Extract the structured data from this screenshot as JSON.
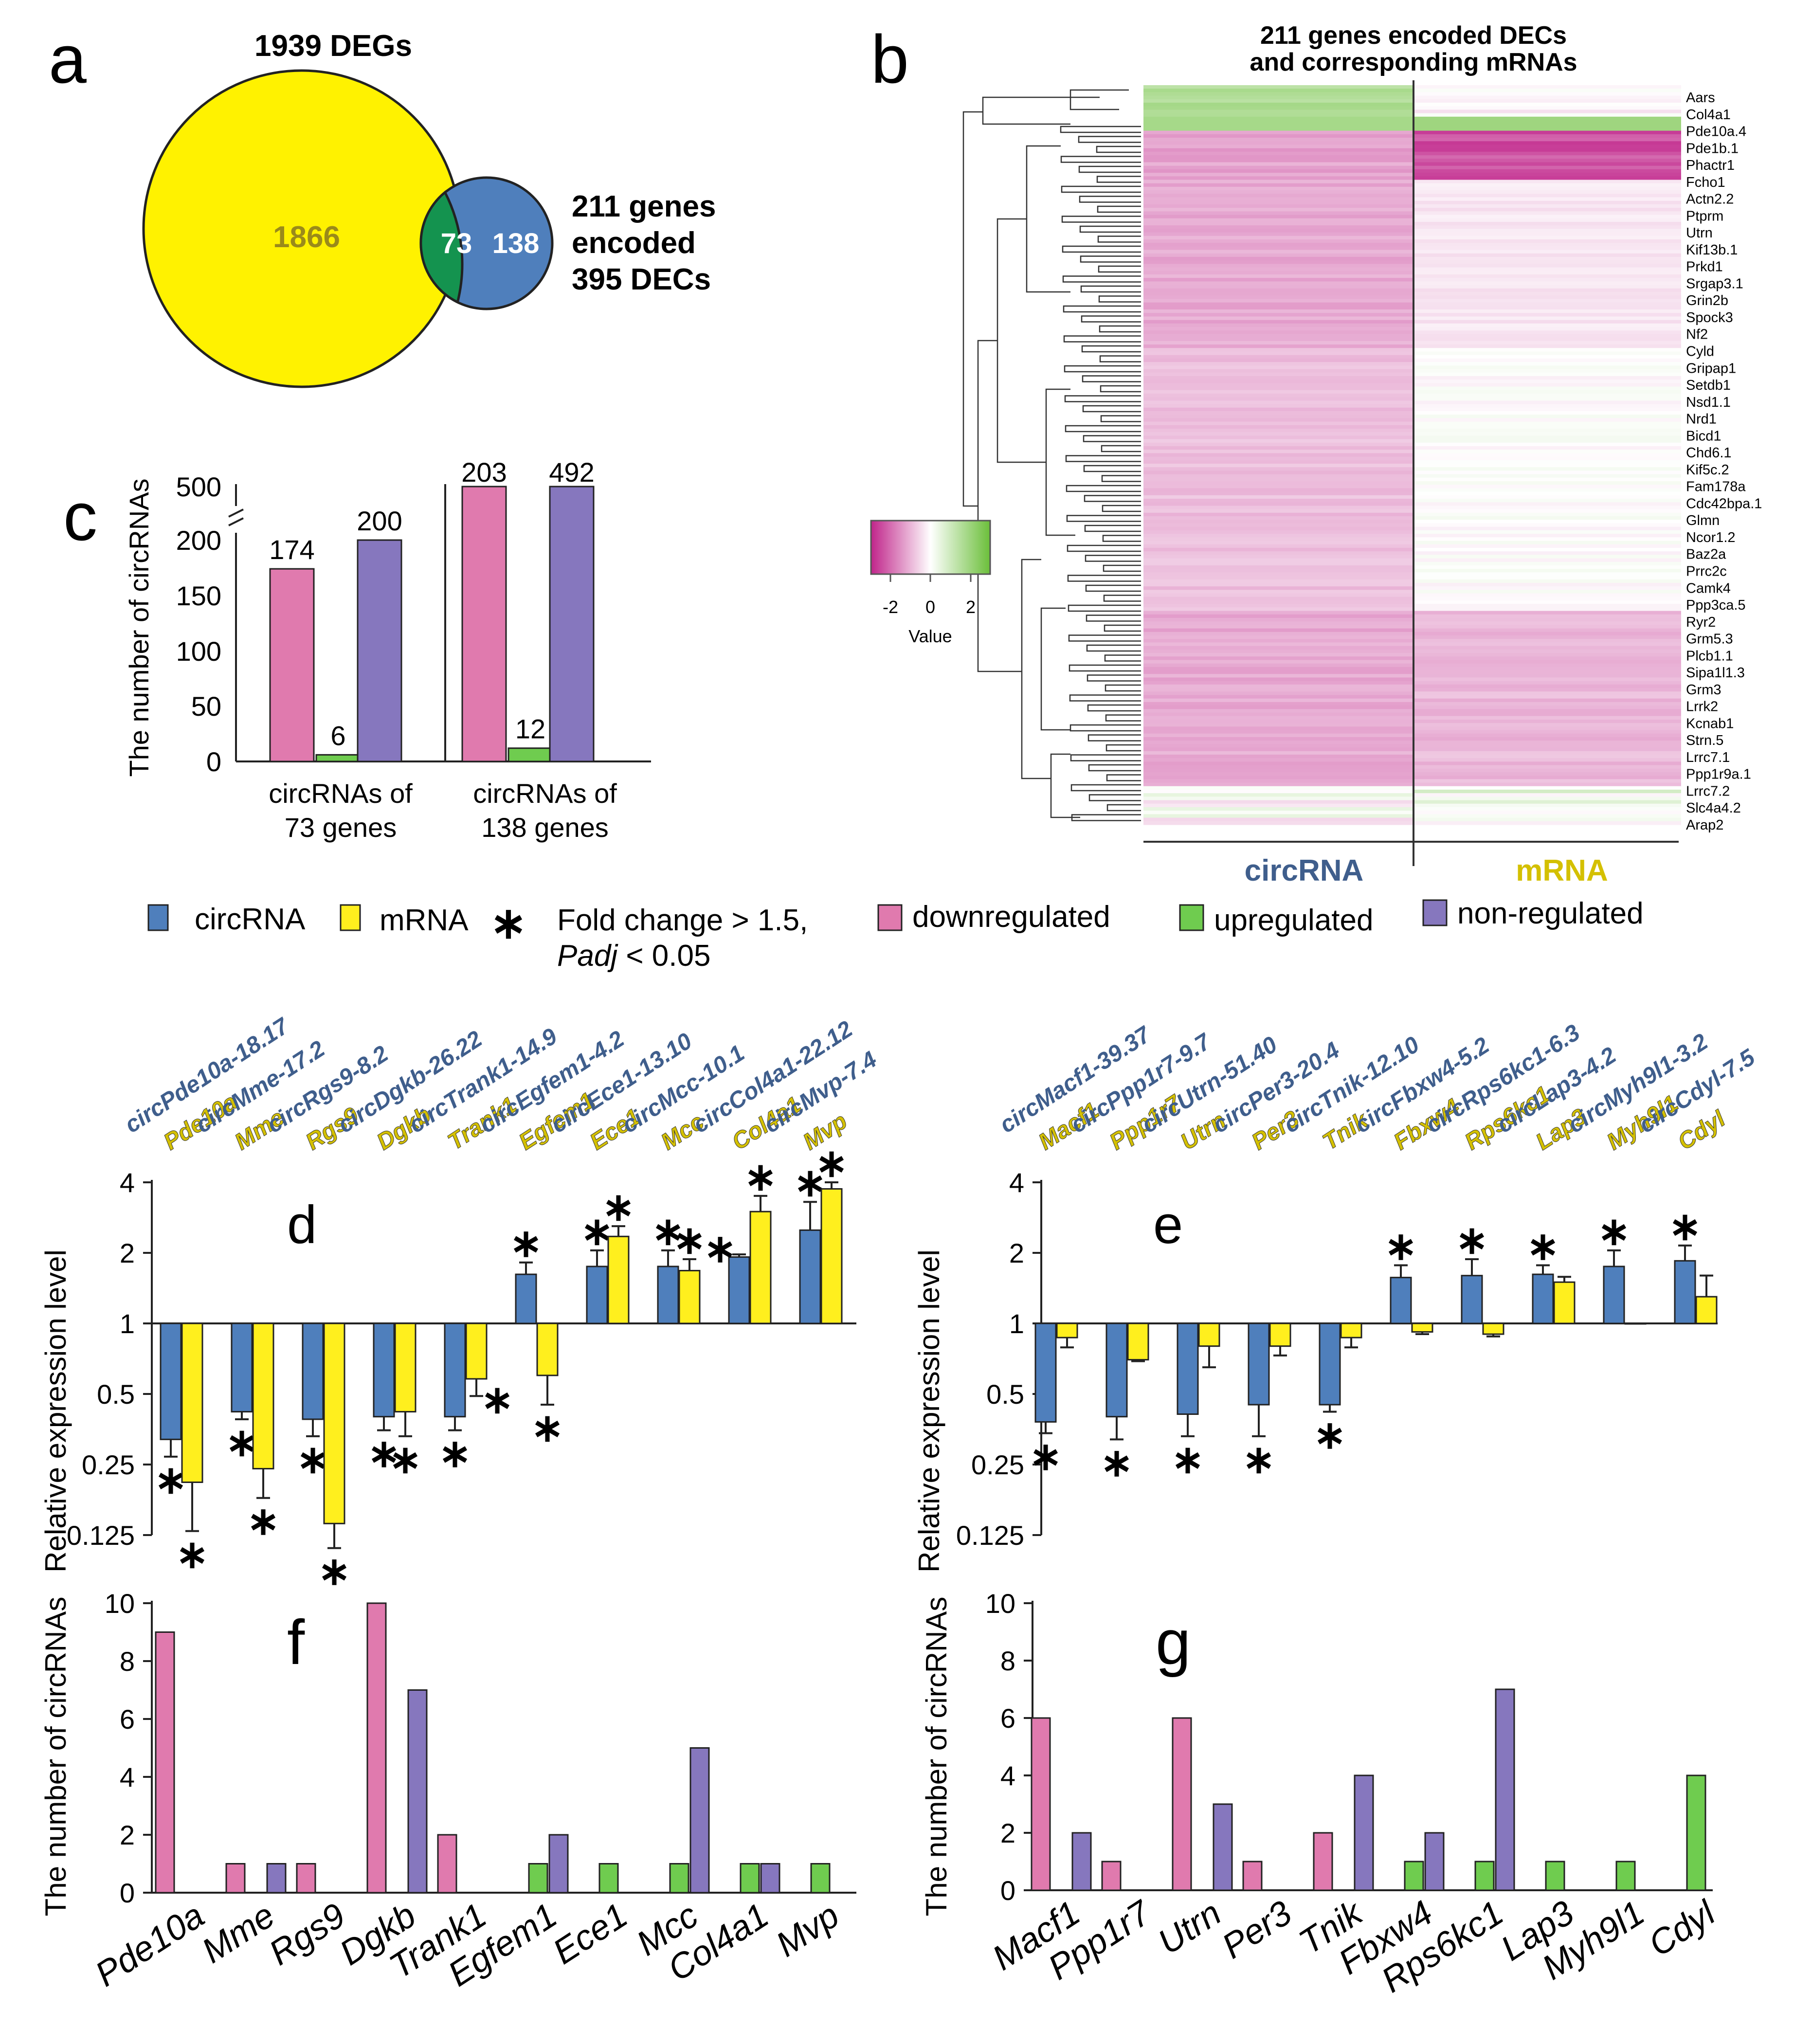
{
  "colors": {
    "circ": "#4f7fbc",
    "mrna": "#ffef1e",
    "down": "#e07aae",
    "up": "#6fcc4f",
    "non": "#8677be",
    "yellow_venn": "#fff200",
    "green_venn": "#14934f",
    "blue_venn": "#4f7fbc",
    "circ_text": "#3f5e8c",
    "mrna_text": "#d4c000"
  },
  "venn": {
    "panel": "a",
    "top_label": "1939 DEGs",
    "left_only": "1866",
    "overlap": "73",
    "right_only": "138",
    "right_label": [
      "211 genes",
      "encoded",
      "395 DECs"
    ]
  },
  "heatmap": {
    "panel": "b",
    "title_line1": "211 genes encoded DECs",
    "title_line2": "and corresponding mRNAs",
    "gene_labels": [
      "Aars",
      "Col4a1",
      "Pde10a.4",
      "Pde1b.1",
      "Phactr1",
      "Fcho1",
      "Actn2.2",
      "Ptprm",
      "Utrn",
      "Kif13b.1",
      "Prkd1",
      "Srgap3.1",
      "Grin2b",
      "Spock3",
      "Nf2",
      "Cyld",
      "Gripap1",
      "Setdb1",
      "Nsd1.1",
      "Nrd1",
      "Bicd1",
      "Chd6.1",
      "Kif5c.2",
      "Fam178a",
      "Cdc42bpa.1",
      "Glmn",
      "Ncor1.2",
      "Baz2a",
      "Prrc2c",
      "Camk4",
      "Ppp3ca.5",
      "Ryr2",
      "Grm5.3",
      "Plcb1.1",
      "Sipa1l1.3",
      "Grm3",
      "Lrrk2",
      "Kcnab1",
      "Strn.5",
      "Lrrc7.1",
      "Ppp1r9a.1",
      "Lrrc7.2",
      "Slc4a4.2",
      "Arap2"
    ],
    "column_labels": [
      "circRNA",
      "mRNA"
    ],
    "legend_title": "Value",
    "legend_ticks": [
      "-2",
      "0",
      "2"
    ]
  },
  "legend": {
    "circ": "circRNA",
    "mrna": "mRNA",
    "star": "∗",
    "fold_text": "Fold change > 1.5,",
    "padj_text": "Padj",
    "padj_rest": " < 0.05",
    "down": "downregulated",
    "up": "upregulated",
    "non": "non-regulated"
  },
  "chart_data": [
    {
      "panel": "c",
      "type": "bar",
      "ylabel": "The number of circRNAs",
      "y_ticks": [
        "0",
        "50",
        "100",
        "150",
        "200",
        "500"
      ],
      "axis_break": true,
      "groups": [
        {
          "label": [
            "circRNAs of",
            "73 genes"
          ],
          "values": [
            174,
            6,
            200
          ]
        },
        {
          "label": [
            "circRNAs of",
            "138 genes"
          ],
          "values": [
            203,
            12,
            492
          ]
        }
      ],
      "series_order": [
        "downregulated",
        "upregulated",
        "non-regulated"
      ]
    },
    {
      "panel": "d",
      "type": "bar",
      "scale": "log2",
      "ylabel": "Relative expression level",
      "y_ticks": [
        "0.125",
        "0.25",
        "0.5",
        "1",
        "2",
        "4"
      ],
      "ylim": [
        0.125,
        4
      ],
      "genes": [
        {
          "circ_label": "circPde10a-18.17",
          "mrna_label": "Pde10a",
          "circ": 0.32,
          "circ_err": 0.05,
          "mrna": 0.21,
          "mrna_err": 0.08,
          "circ_star": "below",
          "mrna_star": "below"
        },
        {
          "circ_label": "circMme-17.2",
          "mrna_label": "Mme",
          "circ": 0.42,
          "circ_err": 0.03,
          "mrna": 0.24,
          "mrna_err": 0.06,
          "circ_star": "below",
          "mrna_star": "below"
        },
        {
          "circ_label": "circRgs9-8.2",
          "mrna_label": "Rgs9",
          "circ": 0.39,
          "circ_err": 0.06,
          "mrna": 0.14,
          "mrna_err": 0.03,
          "circ_star": "below",
          "mrna_star": "below"
        },
        {
          "circ_label": "circDgkb-26.22",
          "mrna_label": "Dgkb",
          "circ": 0.4,
          "circ_err": 0.05,
          "mrna": 0.42,
          "mrna_err": 0.09,
          "circ_star": "below",
          "mrna_star": "below"
        },
        {
          "circ_label": "circTrank1-14.9",
          "mrna_label": "Trank1",
          "circ": 0.4,
          "circ_err": 0.05,
          "mrna": 0.58,
          "mrna_err": 0.09,
          "circ_star": "below",
          "mrna_star": "right"
        },
        {
          "circ_label": "circEgfem1-4.2",
          "mrna_label": "Egfem1",
          "circ": 1.62,
          "circ_err": 0.2,
          "mrna": 0.6,
          "mrna_err": 0.15,
          "circ_star": "above",
          "mrna_star": "below"
        },
        {
          "circ_label": "circEce1-13.10",
          "mrna_label": "Ece1",
          "circ": 1.75,
          "circ_err": 0.3,
          "mrna": 2.35,
          "mrna_err": 0.25,
          "circ_star": "above",
          "mrna_star": "above"
        },
        {
          "circ_label": "circMcc-10.1",
          "mrna_label": "Mcc",
          "circ": 1.75,
          "circ_err": 0.3,
          "mrna": 1.68,
          "mrna_err": 0.2,
          "circ_star": "above",
          "mrna_star": "above"
        },
        {
          "circ_label": "circCol4a1-22.12",
          "mrna_label": "Col4a1",
          "circ": 1.92,
          "circ_err": 0.05,
          "mrna": 3.0,
          "mrna_err": 0.5,
          "circ_star": "left",
          "mrna_star": "above"
        },
        {
          "circ_label": "circMvp-7.4",
          "mrna_label": "Mvp",
          "circ": 2.5,
          "circ_err": 0.8,
          "mrna": 3.75,
          "mrna_err": 0.25,
          "circ_star": "above",
          "mrna_star": "above"
        }
      ]
    },
    {
      "panel": "e",
      "type": "bar",
      "scale": "log2",
      "ylabel": "Relative expression level",
      "y_ticks": [
        "0.125",
        "0.25",
        "0.5",
        "1",
        "2",
        "4"
      ],
      "ylim": [
        0.125,
        4
      ],
      "genes": [
        {
          "circ_label": "circMacf1-39.37",
          "mrna_label": "Macf1",
          "circ": 0.38,
          "circ_err": 0.04,
          "mrna": 0.87,
          "mrna_err": 0.08,
          "circ_star": "below",
          "mrna_star": ""
        },
        {
          "circ_label": "circPpp1r7-9.7",
          "mrna_label": "Ppp1r7",
          "circ": 0.4,
          "circ_err": 0.08,
          "mrna": 0.7,
          "mrna_err": 0.01,
          "circ_star": "below",
          "mrna_star": ""
        },
        {
          "circ_label": "circUtrn-51.40",
          "mrna_label": "Utrn",
          "circ": 0.41,
          "circ_err": 0.08,
          "mrna": 0.8,
          "mrna_err": 0.15,
          "circ_star": "below",
          "mrna_star": ""
        },
        {
          "circ_label": "circPer3-20.4",
          "mrna_label": "Per3",
          "circ": 0.45,
          "circ_err": 0.12,
          "mrna": 0.8,
          "mrna_err": 0.07,
          "circ_star": "below",
          "mrna_star": ""
        },
        {
          "circ_label": "circTnik-12.10",
          "mrna_label": "Tnik",
          "circ": 0.45,
          "circ_err": 0.03,
          "mrna": 0.87,
          "mrna_err": 0.08,
          "circ_star": "below",
          "mrna_star": ""
        },
        {
          "circ_label": "circFbxw4-5.2",
          "mrna_label": "Fbxw4",
          "circ": 1.57,
          "circ_err": 0.2,
          "mrna": 0.92,
          "mrna_err": 0.02,
          "circ_star": "above",
          "mrna_star": ""
        },
        {
          "circ_label": "circRps6kc1-6.3",
          "mrna_label": "Rps6kc1",
          "circ": 1.6,
          "circ_err": 0.28,
          "mrna": 0.9,
          "mrna_err": 0.02,
          "circ_star": "above",
          "mrna_star": ""
        },
        {
          "circ_label": "circLap3-4.2",
          "mrna_label": "Lap3",
          "circ": 1.62,
          "circ_err": 0.15,
          "mrna": 1.5,
          "mrna_err": 0.08,
          "circ_star": "above",
          "mrna_star": ""
        },
        {
          "circ_label": "circMyh9l1-3.2",
          "mrna_label": "Myh9l1",
          "circ": 1.75,
          "circ_err": 0.3,
          "mrna": 1.0,
          "mrna_err": 0,
          "circ_star": "above",
          "mrna_star": ""
        },
        {
          "circ_label": "circCdyl-7.5",
          "mrna_label": "Cdyl",
          "circ": 1.85,
          "circ_err": 0.3,
          "mrna": 1.3,
          "mrna_err": 0.3,
          "circ_star": "above",
          "mrna_star": ""
        }
      ]
    },
    {
      "panel": "f",
      "type": "bar",
      "ylabel": "The number of circRNAs",
      "ylim": [
        0,
        10
      ],
      "y_ticks": [
        "0",
        "2",
        "4",
        "6",
        "8",
        "10"
      ],
      "categories": [
        "Pde10a",
        "Mme",
        "Rgs9",
        "Dgkb",
        "Trank1",
        "Egfem1",
        "Ece1",
        "Mcc",
        "Col4a1",
        "Mvp"
      ],
      "series": [
        {
          "name": "downregulated",
          "values": [
            9,
            1,
            1,
            10,
            2,
            0,
            0,
            0,
            0,
            0
          ]
        },
        {
          "name": "upregulated",
          "values": [
            0,
            0,
            0,
            0,
            0,
            1,
            1,
            1,
            1,
            1
          ]
        },
        {
          "name": "non-regulated",
          "values": [
            0,
            1,
            0,
            7,
            0,
            2,
            0,
            5,
            1,
            0
          ]
        }
      ]
    },
    {
      "panel": "g",
      "type": "bar",
      "ylabel": "The number of circRNAs",
      "ylim": [
        0,
        10
      ],
      "y_ticks": [
        "0",
        "2",
        "4",
        "6",
        "8",
        "10"
      ],
      "categories": [
        "Macf1",
        "Ppp1r7",
        "Utrn",
        "Per3",
        "Tnik",
        "Fbxw4",
        "Rps6kc1",
        "Lap3",
        "Myh9l1",
        "Cdyl"
      ],
      "series": [
        {
          "name": "downregulated",
          "values": [
            6,
            1,
            6,
            1,
            2,
            0,
            0,
            0,
            0,
            0
          ]
        },
        {
          "name": "upregulated",
          "values": [
            0,
            0,
            0,
            0,
            0,
            1,
            1,
            1,
            1,
            4
          ]
        },
        {
          "name": "non-regulated",
          "values": [
            2,
            0,
            3,
            0,
            4,
            2,
            7,
            0,
            0,
            0
          ]
        }
      ]
    }
  ]
}
